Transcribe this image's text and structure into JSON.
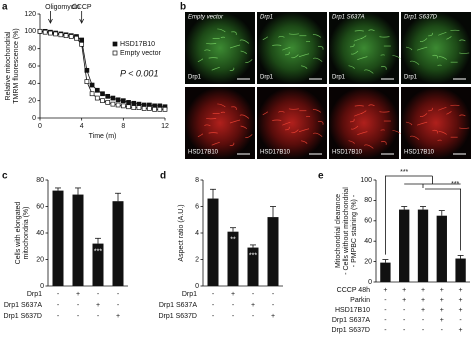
{
  "panel_labels": [
    "a",
    "b",
    "c",
    "d",
    "e"
  ],
  "images": {
    "columns": [
      "Empty vector",
      "Drp1",
      "Drp1 S637A",
      "Drp1 S637D"
    ],
    "rows": [
      "Drp1",
      "HSD17B10"
    ]
  },
  "chart_data": [
    {
      "type": "line",
      "y_label": [
        "Relative mitochondrial",
        "TMRM fluorescence (%)"
      ],
      "x_label": "Time (m)",
      "x": [
        0,
        0.5,
        1,
        1.5,
        2,
        2.5,
        3,
        3.5,
        4,
        4.5,
        5,
        5.5,
        6,
        6.5,
        7,
        7.5,
        8,
        8.5,
        9,
        9.5,
        10,
        10.5,
        11,
        11.5,
        12
      ],
      "series": [
        {
          "name": "HSD17B10",
          "color": "#111111",
          "marker": "filled",
          "values": [
            100,
            100,
            99,
            98,
            97,
            96,
            95,
            94,
            90,
            55,
            38,
            32,
            28,
            25,
            23,
            21,
            20,
            18,
            17,
            16,
            15,
            15,
            14,
            14,
            13
          ]
        },
        {
          "name": "Empty vector",
          "color": "#111111",
          "marker": "open",
          "values": [
            100,
            99,
            98,
            97,
            96,
            95,
            94,
            92,
            85,
            42,
            28,
            23,
            20,
            18,
            16,
            15,
            14,
            13,
            12,
            12,
            11,
            11,
            10,
            10,
            10
          ]
        }
      ],
      "xlim": [
        0,
        12
      ],
      "xticks": [
        0,
        4,
        8,
        12
      ],
      "ylim": [
        0,
        120
      ],
      "yticks": [
        0,
        20,
        40,
        60,
        80,
        100,
        120
      ],
      "legend": "upper right",
      "annotations": [
        "Oligomycin",
        "CCCP",
        "P < 0.001"
      ]
    },
    {
      "type": "bar",
      "y_label": [
        "Cells with elongated",
        "mitochondria (%)"
      ],
      "values": [
        72,
        69,
        32,
        64
      ],
      "errors": [
        2,
        5,
        4,
        6
      ],
      "color": "#111111",
      "significance": [
        null,
        null,
        "***",
        null
      ],
      "ylim": [
        0,
        80
      ],
      "yticks": [
        0,
        20,
        40,
        60,
        80
      ],
      "conditions": [
        {
          "label": "Drp1",
          "values": [
            "-",
            "+",
            "-",
            "-"
          ]
        },
        {
          "label": "Drp1 S637A",
          "values": [
            "-",
            "-",
            "+",
            "-"
          ]
        },
        {
          "label": "Drp1 S637D",
          "values": [
            "-",
            "-",
            "-",
            "+"
          ]
        }
      ]
    },
    {
      "type": "bar",
      "y_label": [
        "Aspect ratio (A.U.)"
      ],
      "values": [
        6.6,
        4.1,
        2.9,
        5.2
      ],
      "errors": [
        0.7,
        0.3,
        0.2,
        0.8
      ],
      "color": "#111111",
      "significance": [
        null,
        "**",
        "***",
        null
      ],
      "ylim": [
        0,
        8
      ],
      "yticks": [
        0,
        2,
        4,
        6,
        8
      ],
      "conditions": [
        {
          "label": "Drp1",
          "values": [
            "-",
            "+",
            "-",
            "-"
          ]
        },
        {
          "label": "Drp1 S637A",
          "values": [
            "-",
            "-",
            "+",
            "-"
          ]
        },
        {
          "label": "Drp1 S637D",
          "values": [
            "-",
            "-",
            "-",
            "+"
          ]
        }
      ]
    },
    {
      "type": "bar",
      "y_label": [
        "Mitochondrial clearance",
        "- Cells without mitochondrial",
        "- PMPBC staining (%) -"
      ],
      "values": [
        19,
        71,
        71,
        65,
        23
      ],
      "errors": [
        3,
        3,
        3,
        5,
        3
      ],
      "color": "#111111",
      "brackets": [
        "***",
        "***"
      ],
      "ylim": [
        0,
        100
      ],
      "yticks": [
        0,
        20,
        40,
        60,
        80,
        100
      ],
      "conditions": [
        {
          "label": "CCCP 48h",
          "values": [
            "+",
            "+",
            "+",
            "+",
            "+"
          ]
        },
        {
          "label": "Parkin",
          "values": [
            "-",
            "+",
            "+",
            "+",
            "+"
          ]
        },
        {
          "label": "HSD17B10",
          "values": [
            "-",
            "-",
            "+",
            "+",
            "+"
          ]
        },
        {
          "label": "Drp1 S637A",
          "values": [
            "-",
            "-",
            "-",
            "+",
            "-"
          ]
        },
        {
          "label": "Drp1 S637D",
          "values": [
            "-",
            "-",
            "-",
            "-",
            "+"
          ]
        }
      ]
    }
  ]
}
